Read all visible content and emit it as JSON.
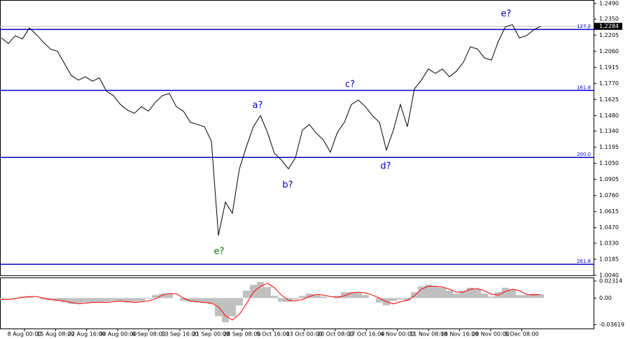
{
  "chart_data": {
    "type": "line",
    "xlabels": [
      "8 Aug 00:00",
      "15 Aug 08:00",
      "22 Aug 16:00",
      "30 Aug 00:00",
      "6 Sep 08:00",
      "13 Sep 16:00",
      "21 Sep 00:00",
      "28 Sep 08:00",
      "5 Oct 16:00",
      "13 Oct 00:00",
      "20 Oct 08:00",
      "27 Oct 16:00",
      "4 Nov 00:00",
      "11 Nov 08:00",
      "18 Nov 16:00",
      "28 Nov 00:00",
      "5 Dec 08:00"
    ],
    "series": [
      {
        "color": "#000000",
        "values": [
          1.218,
          1.213,
          1.22,
          1.217,
          1.227,
          1.221,
          1.214,
          1.208,
          1.206,
          1.195,
          1.184,
          1.18,
          1.183,
          1.179,
          1.182,
          1.17,
          1.166,
          1.158,
          1.153,
          1.15,
          1.156,
          1.152,
          1.16,
          1.166,
          1.168,
          1.156,
          1.152,
          1.142,
          1.14,
          1.138,
          1.125,
          1.04,
          1.07,
          1.06,
          1.1,
          1.12,
          1.138,
          1.148,
          1.133,
          1.114,
          1.108,
          1.1,
          1.11,
          1.135,
          1.14,
          1.132,
          1.126,
          1.115,
          1.133,
          1.142,
          1.158,
          1.162,
          1.156,
          1.148,
          1.142,
          1.117,
          1.135,
          1.158,
          1.138,
          1.172,
          1.18,
          1.19,
          1.186,
          1.19,
          1.183,
          1.188,
          1.196,
          1.21,
          1.208,
          1.2,
          1.198,
          1.215,
          1.228,
          1.23,
          1.218,
          1.22,
          1.225,
          1.2284
        ]
      }
    ],
    "ylim": [
      1.004,
      1.2509
    ],
    "yticks": [
      {
        "value": 1.249,
        "label": "1.2490"
      },
      {
        "value": 1.235,
        "label": "1.2350"
      },
      {
        "value": 1.2205,
        "label": "1.2205"
      },
      {
        "value": 1.206,
        "label": "1.2060"
      },
      {
        "value": 1.1915,
        "label": "1.1915"
      },
      {
        "value": 1.177,
        "label": "1.1770"
      },
      {
        "value": 1.1625,
        "label": "1.1625"
      },
      {
        "value": 1.148,
        "label": "1.1480"
      },
      {
        "value": 1.134,
        "label": "1.1340"
      },
      {
        "value": 1.1195,
        "label": "1.1195"
      },
      {
        "value": 1.105,
        "label": "1.1050"
      },
      {
        "value": 1.0905,
        "label": "1.0905"
      },
      {
        "value": 1.076,
        "label": "1.0760"
      },
      {
        "value": 1.0615,
        "label": "1.0615"
      },
      {
        "value": 1.047,
        "label": "1.0470"
      },
      {
        "value": 1.033,
        "label": "1.0330"
      },
      {
        "value": 1.0185,
        "label": "1.0185"
      },
      {
        "value": 1.004,
        "label": "1.0040"
      }
    ],
    "last_price": 1.2284,
    "levels": [
      {
        "name": "127.2",
        "price": 1.2256,
        "color": "#0000cc"
      },
      {
        "name": "161.8",
        "price": 1.1707,
        "color": "#0000cc"
      },
      {
        "name": "200.0",
        "price": 1.1103,
        "color": "#0000cc"
      },
      {
        "name": "261.8",
        "price": 1.014,
        "color": "#0000cc"
      }
    ],
    "annotations": [
      {
        "text": "e?",
        "color": "#008000"
      },
      {
        "text": "a?",
        "color": "#0000cc"
      },
      {
        "text": "b?",
        "color": "#0000cc"
      },
      {
        "text": "c?",
        "color": "#0000cc"
      },
      {
        "text": "d?",
        "color": "#0000cc"
      },
      {
        "text": "e?",
        "color": "#0000cc"
      }
    ],
    "macd": {
      "histogram_color": "#c0c0c0",
      "signal_color": "#ff0000",
      "histogram": [
        -0.002,
        -0.001,
        0.001,
        0.002,
        0.002,
        0.0,
        -0.002,
        -0.003,
        -0.004,
        -0.006,
        -0.008,
        -0.007,
        -0.006,
        -0.006,
        -0.006,
        -0.005,
        -0.004,
        -0.005,
        -0.006,
        -0.005,
        -0.004,
        -0.001,
        0.004,
        0.006,
        0.006,
        0.0,
        -0.004,
        -0.005,
        -0.006,
        -0.007,
        -0.008,
        -0.025,
        -0.033,
        -0.025,
        -0.01,
        0.01,
        0.018,
        0.022,
        0.015,
        0.003,
        -0.005,
        -0.005,
        -0.002,
        0.003,
        0.006,
        0.004,
        0.002,
        0.0,
        0.003,
        0.008,
        0.008,
        0.007,
        0.004,
        0.0,
        -0.006,
        -0.01,
        -0.004,
        -0.002,
        -0.004,
        0.008,
        0.016,
        0.018,
        0.016,
        0.014,
        0.01,
        0.006,
        0.01,
        0.014,
        0.012,
        0.006,
        0.002,
        0.008,
        0.014,
        0.012,
        0.004,
        0.004,
        0.006,
        0.005
      ],
      "signal": [
        -0.002,
        -0.002,
        -0.001,
        0.001,
        0.002,
        0.002,
        0.0,
        -0.002,
        -0.003,
        -0.004,
        -0.006,
        -0.008,
        -0.007,
        -0.006,
        -0.006,
        -0.006,
        -0.005,
        -0.004,
        -0.005,
        -0.006,
        -0.005,
        -0.004,
        -0.001,
        0.004,
        0.006,
        0.006,
        0.0,
        -0.004,
        -0.005,
        -0.006,
        -0.007,
        -0.012,
        -0.024,
        -0.03,
        -0.022,
        -0.008,
        0.008,
        0.016,
        0.02,
        0.014,
        0.004,
        -0.003,
        -0.004,
        -0.002,
        0.002,
        0.005,
        0.004,
        0.002,
        0.001,
        0.003,
        0.007,
        0.008,
        0.007,
        0.004,
        0.0,
        -0.005,
        -0.008,
        -0.005,
        -0.003,
        0.003,
        0.012,
        0.016,
        0.016,
        0.015,
        0.012,
        0.008,
        0.008,
        0.012,
        0.013,
        0.01,
        0.005,
        0.004,
        0.009,
        0.012,
        0.01,
        0.005,
        0.004,
        0.005
      ],
      "ylim": [
        -0.0415,
        0.027
      ],
      "yticks": [
        0.02314,
        {
          "value": 0,
          "label": "0.00"
        },
        -0.03619
      ]
    }
  }
}
